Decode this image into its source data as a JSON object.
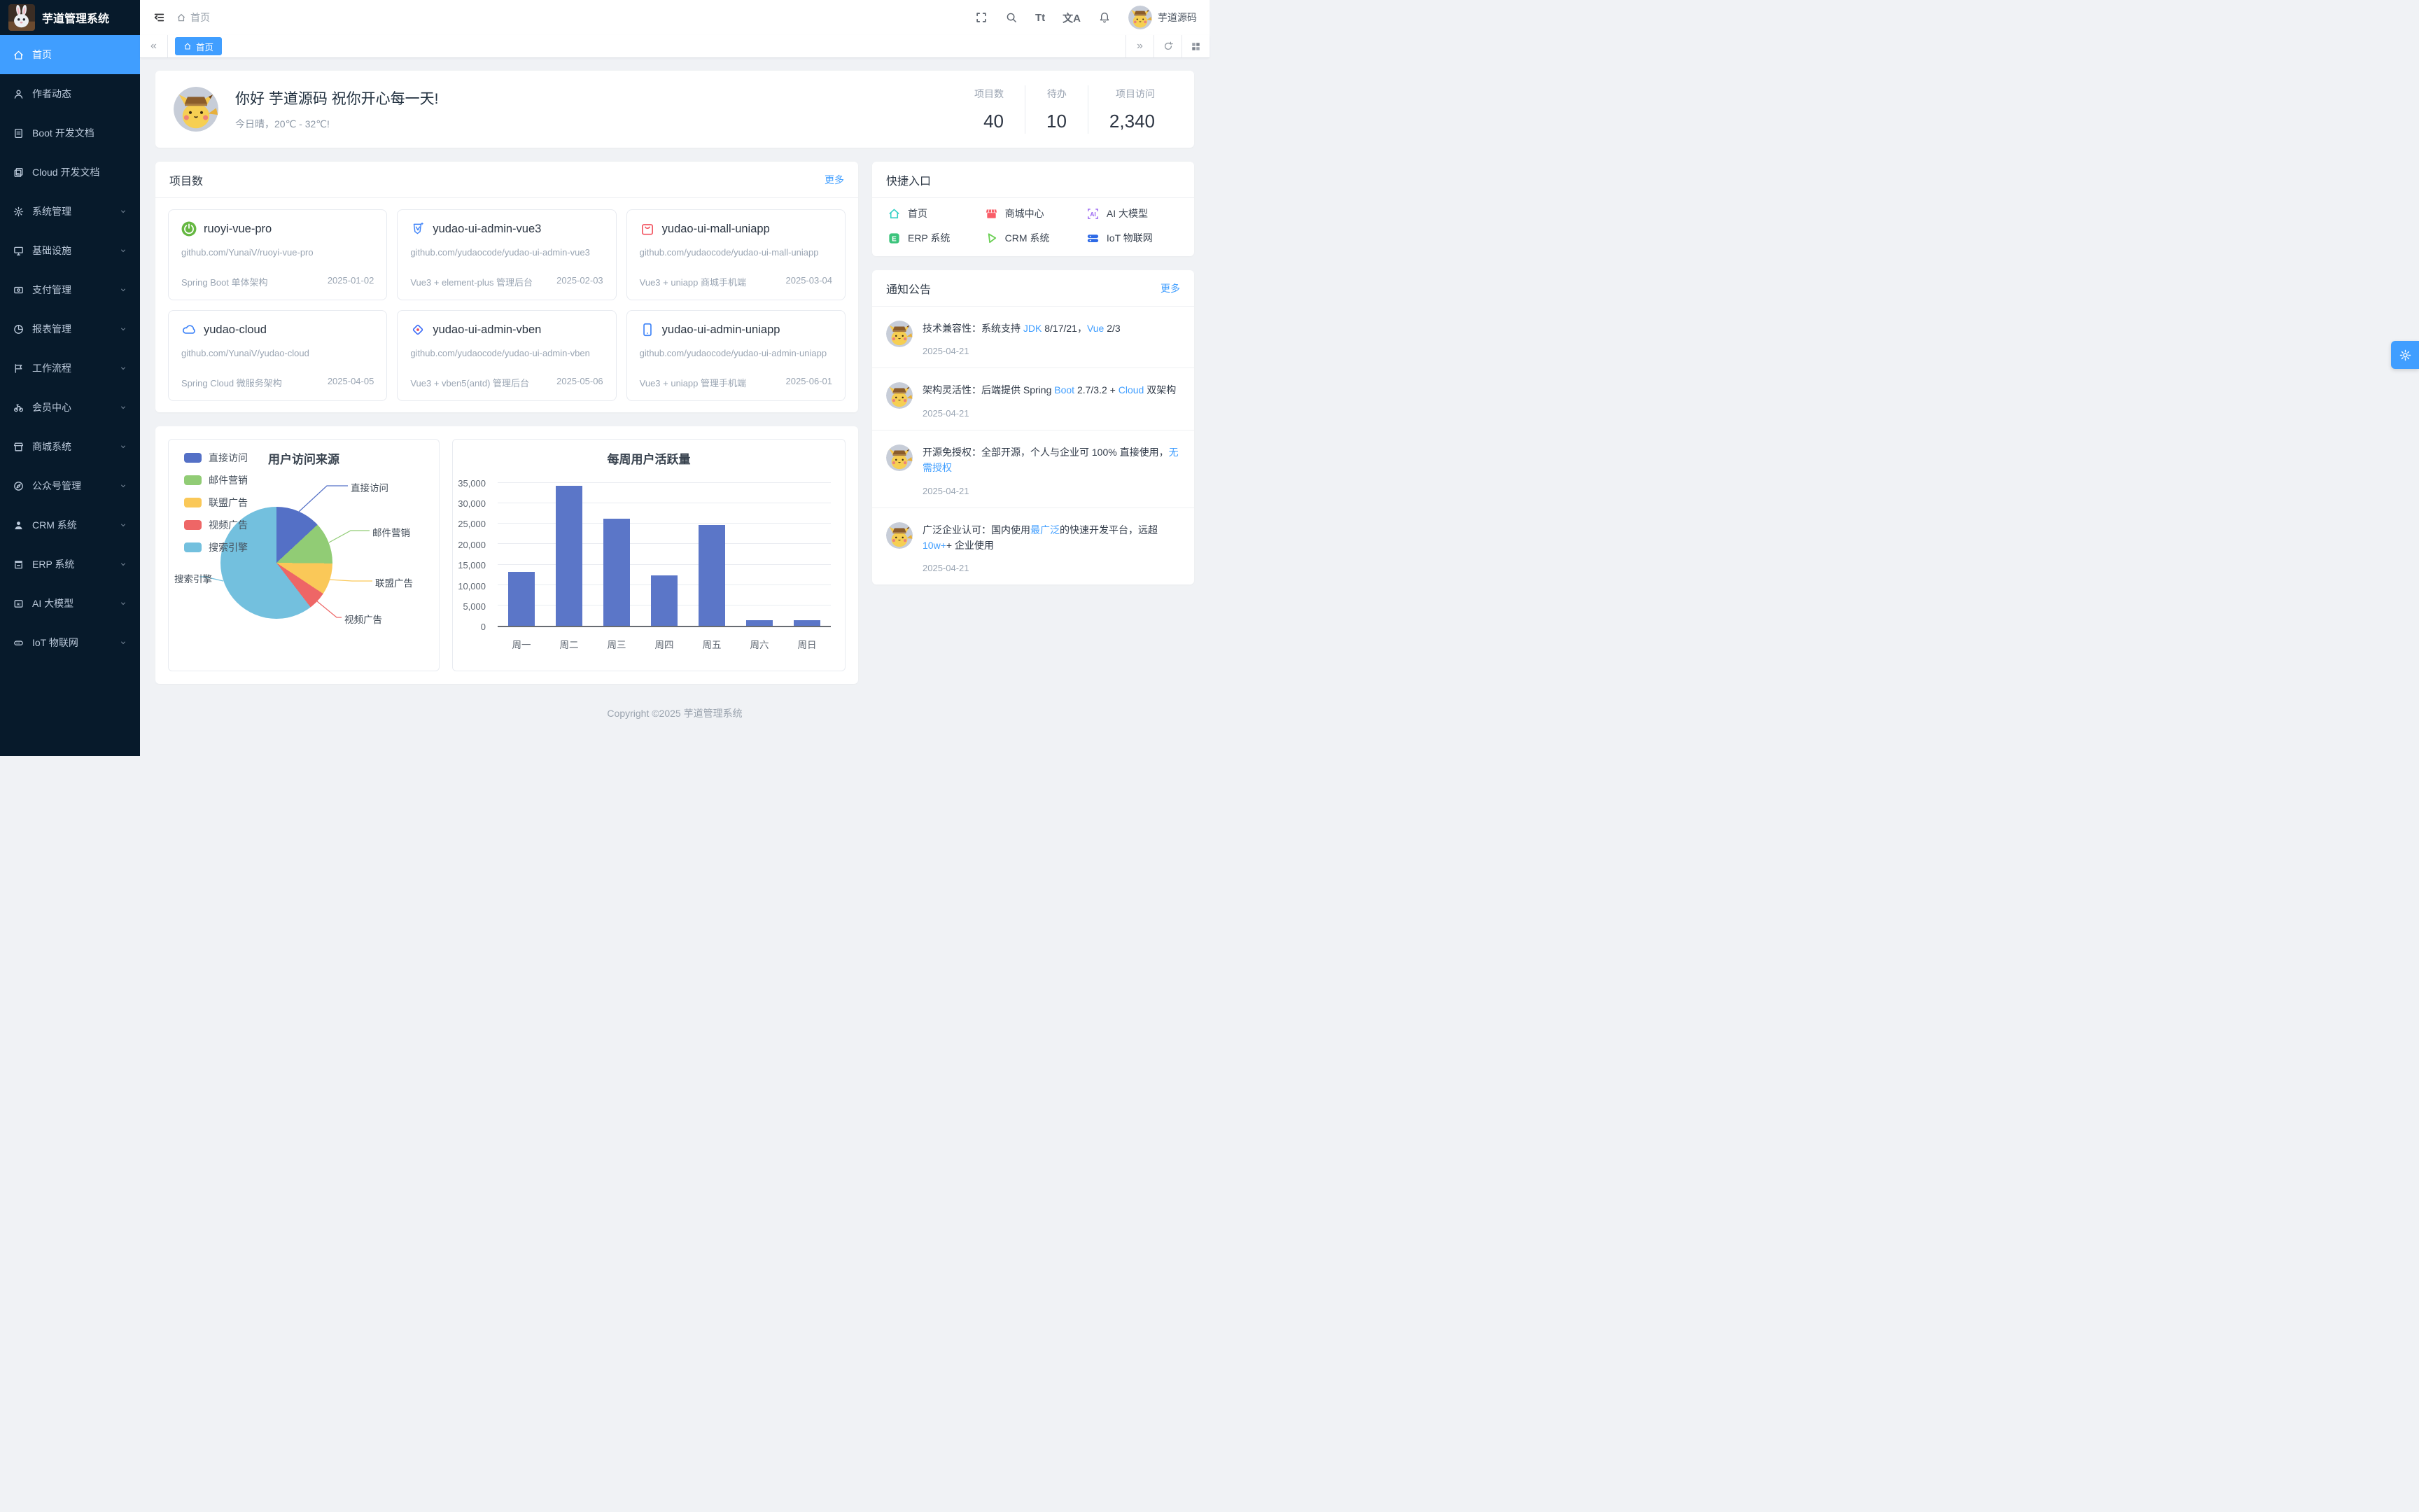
{
  "app": {
    "sidebar_title": "芋道管理系统",
    "user_name": "芋道源码"
  },
  "topbar": {
    "breadcrumb_home": "首页",
    "font_size_icon_label": "Tt",
    "language_icon_label": "文A"
  },
  "tabbar": {
    "collapse_left": "«",
    "collapse_right": "»",
    "active_tab": "首页"
  },
  "sidebar": {
    "items": [
      {
        "icon": "home-icon",
        "label": "首页",
        "active": true
      },
      {
        "icon": "user-icon",
        "label": "作者动态"
      },
      {
        "icon": "document-icon",
        "label": "Boot 开发文档"
      },
      {
        "icon": "documents-icon",
        "label": "Cloud 开发文档"
      },
      {
        "icon": "gear-icon",
        "label": "系统管理",
        "expandable": true
      },
      {
        "icon": "monitor-icon",
        "label": "基础设施",
        "expandable": true
      },
      {
        "icon": "wallet-icon",
        "label": "支付管理",
        "expandable": true
      },
      {
        "icon": "pie-icon",
        "label": "报表管理",
        "expandable": true
      },
      {
        "icon": "workflow-icon",
        "label": "工作流程",
        "expandable": true
      },
      {
        "icon": "bicycle-icon",
        "label": "会员中心",
        "expandable": true
      },
      {
        "icon": "shop-icon",
        "label": "商城系统",
        "expandable": true
      },
      {
        "icon": "compass-icon",
        "label": "公众号管理",
        "expandable": true
      },
      {
        "icon": "person-icon",
        "label": "CRM 系统",
        "expandable": true
      },
      {
        "icon": "store-icon",
        "label": "ERP 系统",
        "expandable": true
      },
      {
        "icon": "ai-icon",
        "label": "AI 大模型",
        "expandable": true
      },
      {
        "icon": "iot-icon",
        "label": "IoT 物联网",
        "expandable": true
      }
    ]
  },
  "greeting": {
    "title": "你好 芋道源码 祝你开心每一天!",
    "subtitle": "今日晴，20℃ - 32℃!",
    "stats": [
      {
        "label": "项目数",
        "value": "40"
      },
      {
        "label": "待办",
        "value": "10"
      },
      {
        "label": "项目访问",
        "value": "2,340"
      }
    ]
  },
  "projects": {
    "title": "项目数",
    "more_label": "更多",
    "cards": [
      {
        "icon": "spring-icon",
        "name": "ruoyi-vue-pro",
        "url": "github.com/YunaiV/ruoyi-vue-pro",
        "desc": "Spring Boot 单体架构",
        "date": "2025-01-02"
      },
      {
        "icon": "vue-icon",
        "name": "yudao-ui-admin-vue3",
        "url": "github.com/yudaocode/yudao-ui-admin-vue3",
        "desc": "Vue3 + element-plus 管理后台",
        "date": "2025-02-03"
      },
      {
        "icon": "bag-icon",
        "name": "yudao-ui-mall-uniapp",
        "url": "github.com/yudaocode/yudao-ui-mall-uniapp",
        "desc": "Vue3 + uniapp 商城手机端",
        "date": "2025-03-04"
      },
      {
        "icon": "cloud-icon",
        "name": "yudao-cloud",
        "url": "github.com/YunaiV/yudao-cloud",
        "desc": "Spring Cloud 微服务架构",
        "date": "2025-04-05"
      },
      {
        "icon": "vben-icon",
        "name": "yudao-ui-admin-vben",
        "url": "github.com/yudaocode/yudao-ui-admin-vben",
        "desc": "Vue3 + vben5(antd) 管理后台",
        "date": "2025-05-06"
      },
      {
        "icon": "phone-icon",
        "name": "yudao-ui-admin-uniapp",
        "url": "github.com/yudaocode/yudao-ui-admin-uniapp",
        "desc": "Vue3 + uniapp 管理手机端",
        "date": "2025-06-01"
      }
    ]
  },
  "quick": {
    "title": "快捷入口",
    "items": [
      {
        "icon": "home-outline-icon",
        "label": "首页",
        "color": "#35d0c6"
      },
      {
        "icon": "mall-icon",
        "label": "商城中心",
        "color": "#f95d68"
      },
      {
        "icon": "ai-badge-icon",
        "label": "AI 大模型",
        "color": "#9a66f2"
      },
      {
        "icon": "erp-badge-icon",
        "label": "ERP 系统",
        "color": "#3cc47c"
      },
      {
        "icon": "crm-triangle-icon",
        "label": "CRM 系统",
        "color": "#69cf52"
      },
      {
        "icon": "iot-server-icon",
        "label": "IoT 物联网",
        "color": "#2e6ae6"
      }
    ]
  },
  "notices": {
    "title": "通知公告",
    "more_label": "更多",
    "items": [
      {
        "parts": [
          {
            "t": "技术兼容性：系统支持 "
          },
          {
            "t": "JDK",
            "b": true
          },
          {
            "t": " 8/17/21，"
          },
          {
            "t": "Vue",
            "b": true
          },
          {
            "t": " 2/3"
          }
        ],
        "date": "2025-04-21"
      },
      {
        "parts": [
          {
            "t": "架构灵活性：后端提供 Spring "
          },
          {
            "t": "Boot",
            "b": true
          },
          {
            "t": " 2.7/3.2 + "
          },
          {
            "t": "Cloud",
            "b": true
          },
          {
            "t": " 双架构"
          }
        ],
        "date": "2025-04-21"
      },
      {
        "parts": [
          {
            "t": "开源免授权：全部开源，个人与企业可 100% 直接使用，"
          },
          {
            "t": "无需授权",
            "b": true
          }
        ],
        "date": "2025-04-21"
      },
      {
        "parts": [
          {
            "t": "广泛企业认可：国内使用"
          },
          {
            "t": "最广泛",
            "b": true
          },
          {
            "t": "的快速开发平台，远超 "
          },
          {
            "t": "10w+",
            "b": true
          },
          {
            "t": "+ 企业使用"
          }
        ],
        "date": "2025-04-21"
      }
    ]
  },
  "footer": {
    "copyright": "Copyright ©2025 芋道管理系统"
  },
  "chart_data": [
    {
      "type": "pie",
      "title": "用户访问来源",
      "legend_position": "left",
      "series": [
        {
          "name": "直接访问",
          "value": 335,
          "color": "#5470C6"
        },
        {
          "name": "邮件营销",
          "value": 310,
          "color": "#91CC75"
        },
        {
          "name": "联盟广告",
          "value": 234,
          "color": "#FAC858"
        },
        {
          "name": "视频广告",
          "value": 135,
          "color": "#EE6666"
        },
        {
          "name": "搜索引擎",
          "value": 1548,
          "color": "#73C0DE"
        }
      ]
    },
    {
      "type": "bar",
      "title": "每周用户活跃量",
      "categories": [
        "周一",
        "周二",
        "周三",
        "周四",
        "周五",
        "周六",
        "周日"
      ],
      "values": [
        13253,
        34235,
        26321,
        12340,
        24643,
        1322,
        1324
      ],
      "ylim": [
        0,
        35000
      ],
      "yticks": [
        "35,000",
        "30,000",
        "25,000",
        "20,000",
        "15,000",
        "10,000",
        "5,000",
        "0"
      ],
      "color": "#5B76C8",
      "grid": true
    }
  ]
}
